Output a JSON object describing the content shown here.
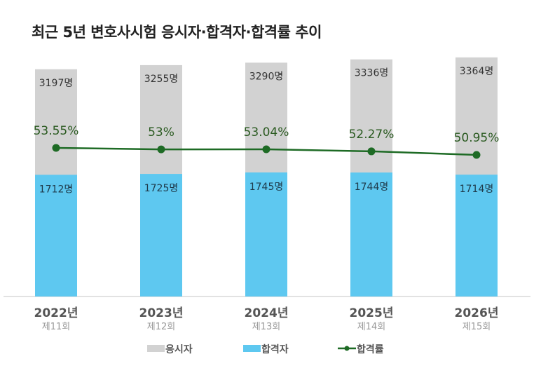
{
  "chart_data": {
    "type": "bar+line",
    "title": "최근 5년 변호사시험 응시자·합격자·합격률 추이",
    "categories": [
      "2022년",
      "2023년",
      "2024년",
      "2025년",
      "2026년"
    ],
    "subcategories": [
      "제11회",
      "제12회",
      "제13회",
      "제14회",
      "제15회"
    ],
    "unit": "명",
    "series": [
      {
        "name": "응시자",
        "type": "bar",
        "color": "#d2d2d2",
        "values": [
          3197,
          3255,
          3290,
          3336,
          3364
        ]
      },
      {
        "name": "합격자",
        "type": "bar",
        "color": "#5ec8f0",
        "values": [
          1712,
          1725,
          1745,
          1744,
          1714
        ]
      },
      {
        "name": "합격률",
        "type": "line",
        "color": "#1e6b25",
        "values": [
          53.55,
          53,
          53.04,
          52.27,
          50.95
        ],
        "labels": [
          "53.55%",
          "53%",
          "53.04%",
          "52.27%",
          "50.95%"
        ]
      }
    ],
    "bars_overlapped": true,
    "grid": false,
    "legend_position": "bottom"
  }
}
